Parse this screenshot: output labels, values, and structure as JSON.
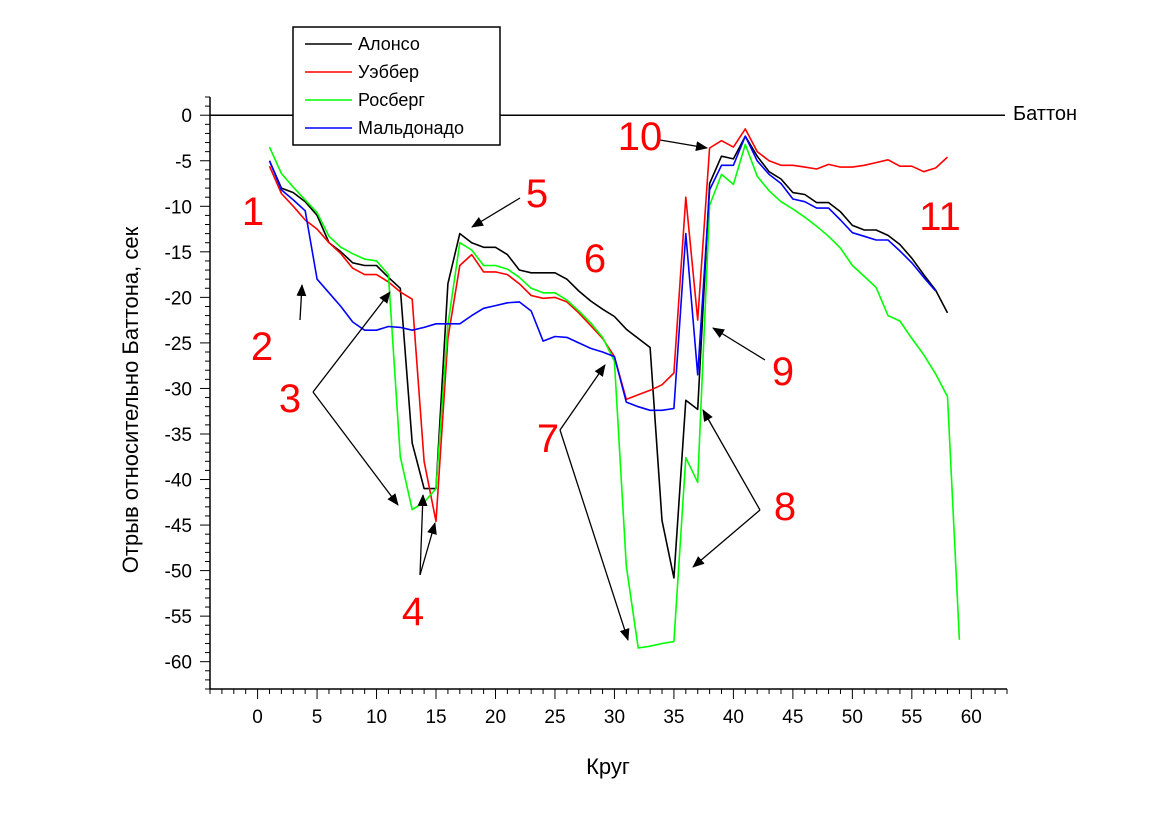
{
  "chart_data": {
    "type": "line",
    "title": "",
    "xlabel": "Круг",
    "ylabel": "Отрыв относительно Баттона, сек",
    "xlim": [
      -4,
      63
    ],
    "ylim": [
      -63,
      2
    ],
    "x_major_ticks": [
      0,
      5,
      10,
      15,
      20,
      25,
      30,
      35,
      40,
      45,
      50,
      55,
      60
    ],
    "x_tick_labels": [
      "0",
      "5",
      "10",
      "15",
      "20",
      "25",
      "30",
      "35",
      "40",
      "45",
      "50",
      "55",
      "60"
    ],
    "y_major_ticks": [
      0,
      -5,
      -10,
      -15,
      -20,
      -25,
      -30,
      -35,
      -40,
      -45,
      -50,
      -55,
      -60
    ],
    "y_tick_labels": [
      "0",
      "-5",
      "-10",
      "-15",
      "-20",
      "-25",
      "-30",
      "-35",
      "-40",
      "-45",
      "-50",
      "-55",
      "-60"
    ],
    "grid": false,
    "legend_position": "top-left",
    "reference_line": {
      "name": "Баттон",
      "y": 0,
      "color": "#000000"
    },
    "series": [
      {
        "name": "Алонсо",
        "color": "#000000",
        "points": [
          [
            1,
            -5
          ],
          [
            2,
            -8
          ],
          [
            3,
            -8.5
          ],
          [
            4,
            -9.5
          ],
          [
            5,
            -11
          ],
          [
            6,
            -14
          ],
          [
            7,
            -15
          ],
          [
            8,
            -16.2
          ],
          [
            9,
            -16.5
          ],
          [
            10,
            -16.5
          ],
          [
            11,
            -17.8
          ],
          [
            12,
            -19
          ],
          [
            13,
            -36
          ],
          [
            14,
            -41
          ],
          [
            15,
            -41
          ],
          [
            16,
            -18.5
          ],
          [
            17,
            -13
          ],
          [
            18,
            -14
          ],
          [
            19,
            -14.5
          ],
          [
            20,
            -14.5
          ],
          [
            21,
            -15.3
          ],
          [
            22,
            -17
          ],
          [
            23,
            -17.3
          ],
          [
            24,
            -17.3
          ],
          [
            25,
            -17.3
          ],
          [
            26,
            -18
          ],
          [
            27,
            -19.3
          ],
          [
            28,
            -20.4
          ],
          [
            29,
            -21.3
          ],
          [
            30,
            -22.1
          ],
          [
            31,
            -23.5
          ],
          [
            32,
            -24.5
          ],
          [
            33,
            -25.5
          ],
          [
            34,
            -44.5
          ],
          [
            35,
            -50.8
          ],
          [
            36,
            -31.3
          ],
          [
            37,
            -32.3
          ],
          [
            38,
            -7.5
          ],
          [
            39,
            -4.5
          ],
          [
            40,
            -4.8
          ],
          [
            41,
            -2.3
          ],
          [
            42,
            -4.5
          ],
          [
            43,
            -6.2
          ],
          [
            44,
            -7
          ],
          [
            45,
            -8.5
          ],
          [
            46,
            -8.7
          ],
          [
            47,
            -9.6
          ],
          [
            48,
            -9.6
          ],
          [
            49,
            -10.6
          ],
          [
            50,
            -12.1
          ],
          [
            51,
            -12.6
          ],
          [
            52,
            -12.6
          ],
          [
            53,
            -13.2
          ],
          [
            54,
            -14.2
          ],
          [
            55,
            -15.7
          ],
          [
            56,
            -17.5
          ],
          [
            57,
            -19.2
          ],
          [
            58,
            -21.7
          ]
        ]
      },
      {
        "name": "Уэббер",
        "color": "#ff0000",
        "points": [
          [
            1,
            -5.6
          ],
          [
            2,
            -8.6
          ],
          [
            3,
            -10
          ],
          [
            4,
            -11.5
          ],
          [
            5,
            -12.5
          ],
          [
            6,
            -14
          ],
          [
            7,
            -15.2
          ],
          [
            8,
            -16.8
          ],
          [
            9,
            -17.5
          ],
          [
            10,
            -17.5
          ],
          [
            11,
            -18.3
          ],
          [
            12,
            -19.4
          ],
          [
            13,
            -20.2
          ],
          [
            14,
            -38
          ],
          [
            15,
            -44.6
          ],
          [
            16,
            -24.5
          ],
          [
            17,
            -16.5
          ],
          [
            18,
            -15.3
          ],
          [
            19,
            -17.2
          ],
          [
            20,
            -17.2
          ],
          [
            21,
            -17.5
          ],
          [
            22,
            -18.5
          ],
          [
            23,
            -19.8
          ],
          [
            24,
            -20.1
          ],
          [
            25,
            -20
          ],
          [
            26,
            -20.5
          ],
          [
            27,
            -21.7
          ],
          [
            28,
            -23.1
          ],
          [
            29,
            -24.5
          ],
          [
            30,
            -26.5
          ],
          [
            31,
            -31.2
          ],
          [
            32,
            -30.7
          ],
          [
            33,
            -30.2
          ],
          [
            34,
            -29.6
          ],
          [
            35,
            -28.3
          ],
          [
            36,
            -9
          ],
          [
            37,
            -22.5
          ],
          [
            38,
            -3.6
          ],
          [
            39,
            -2.8
          ],
          [
            40,
            -3.5
          ],
          [
            41,
            -1.5
          ],
          [
            42,
            -4
          ],
          [
            43,
            -5
          ],
          [
            44,
            -5.5
          ],
          [
            45,
            -5.5
          ],
          [
            46,
            -5.7
          ],
          [
            47,
            -5.9
          ],
          [
            48,
            -5.4
          ],
          [
            49,
            -5.7
          ],
          [
            50,
            -5.7
          ],
          [
            51,
            -5.5
          ],
          [
            52,
            -5.2
          ],
          [
            53,
            -4.9
          ],
          [
            54,
            -5.6
          ],
          [
            55,
            -5.6
          ],
          [
            56,
            -6.2
          ],
          [
            57,
            -5.8
          ],
          [
            58,
            -4.6
          ]
        ]
      },
      {
        "name": "Росберг",
        "color": "#00ff00",
        "points": [
          [
            1,
            -3.5
          ],
          [
            2,
            -6.4
          ],
          [
            3,
            -7.9
          ],
          [
            4,
            -9.3
          ],
          [
            5,
            -10.7
          ],
          [
            6,
            -13.3
          ],
          [
            7,
            -14.5
          ],
          [
            8,
            -15.2
          ],
          [
            9,
            -15.8
          ],
          [
            10,
            -16
          ],
          [
            11,
            -17.5
          ],
          [
            12,
            -37.5
          ],
          [
            13,
            -43.3
          ],
          [
            14,
            -42.5
          ],
          [
            15,
            -41
          ],
          [
            16,
            -23
          ],
          [
            17,
            -14
          ],
          [
            18,
            -14.8
          ],
          [
            19,
            -16.5
          ],
          [
            20,
            -16.5
          ],
          [
            21,
            -16.9
          ],
          [
            22,
            -17.8
          ],
          [
            23,
            -19
          ],
          [
            24,
            -19.5
          ],
          [
            25,
            -19.5
          ],
          [
            26,
            -20.3
          ],
          [
            27,
            -21.5
          ],
          [
            28,
            -22.8
          ],
          [
            29,
            -24.4
          ],
          [
            30,
            -27
          ],
          [
            31,
            -49.5
          ],
          [
            32,
            -58.5
          ],
          [
            33,
            -58.3
          ],
          [
            34,
            -58
          ],
          [
            35,
            -57.8
          ],
          [
            36,
            -37.6
          ],
          [
            37,
            -40.3
          ],
          [
            38,
            -9.9
          ],
          [
            39,
            -6.5
          ],
          [
            40,
            -7.6
          ],
          [
            41,
            -3.2
          ],
          [
            42,
            -6.7
          ],
          [
            43,
            -8.3
          ],
          [
            44,
            -9.5
          ],
          [
            45,
            -10.3
          ],
          [
            46,
            -11.2
          ],
          [
            47,
            -12.2
          ],
          [
            48,
            -13.3
          ],
          [
            49,
            -14.6
          ],
          [
            50,
            -16.5
          ],
          [
            51,
            -17.7
          ],
          [
            52,
            -18.9
          ],
          [
            53,
            -22
          ],
          [
            54,
            -22.6
          ],
          [
            55,
            -24.5
          ],
          [
            56,
            -26.3
          ],
          [
            57,
            -28.4
          ],
          [
            58,
            -30.9
          ],
          [
            59,
            -57.6
          ]
        ]
      },
      {
        "name": "Мальдонадо",
        "color": "#0000ff",
        "points": [
          [
            1,
            -5
          ],
          [
            2,
            -8.2
          ],
          [
            3,
            -9.3
          ],
          [
            4,
            -10.5
          ],
          [
            5,
            -18
          ],
          [
            6,
            -19.5
          ],
          [
            7,
            -21
          ],
          [
            8,
            -22.7
          ],
          [
            9,
            -23.6
          ],
          [
            10,
            -23.6
          ],
          [
            11,
            -23.2
          ],
          [
            12,
            -23.3
          ],
          [
            13,
            -23.6
          ],
          [
            14,
            -23.3
          ],
          [
            15,
            -22.9
          ],
          [
            16,
            -22.9
          ],
          [
            17,
            -22.9
          ],
          [
            18,
            -22
          ],
          [
            19,
            -21.2
          ],
          [
            20,
            -20.9
          ],
          [
            21,
            -20.6
          ],
          [
            22,
            -20.5
          ],
          [
            23,
            -21.5
          ],
          [
            24,
            -24.8
          ],
          [
            25,
            -24.3
          ],
          [
            26,
            -24.4
          ],
          [
            27,
            -25
          ],
          [
            28,
            -25.6
          ],
          [
            29,
            -26
          ],
          [
            30,
            -26.5
          ],
          [
            31,
            -31.5
          ],
          [
            32,
            -32
          ],
          [
            33,
            -32.4
          ],
          [
            34,
            -32.4
          ],
          [
            35,
            -32.2
          ],
          [
            36,
            -13
          ],
          [
            37,
            -28.5
          ],
          [
            38,
            -8.2
          ],
          [
            39,
            -5.5
          ],
          [
            40,
            -5.5
          ],
          [
            41,
            -2.3
          ],
          [
            42,
            -5
          ],
          [
            43,
            -6.5
          ],
          [
            44,
            -7.5
          ],
          [
            45,
            -9.2
          ],
          [
            46,
            -9.5
          ],
          [
            47,
            -10.2
          ],
          [
            48,
            -10.2
          ],
          [
            49,
            -11.5
          ],
          [
            50,
            -12.9
          ],
          [
            51,
            -13.3
          ],
          [
            52,
            -13.7
          ],
          [
            53,
            -13.7
          ],
          [
            54,
            -14.9
          ],
          [
            55,
            -16.2
          ],
          [
            56,
            -17.8
          ],
          [
            57,
            -19.3
          ]
        ]
      }
    ],
    "annotations": [
      {
        "label": "1",
        "color": "#ff0000"
      },
      {
        "label": "2",
        "color": "#ff0000"
      },
      {
        "label": "3",
        "color": "#ff0000"
      },
      {
        "label": "4",
        "color": "#ff0000"
      },
      {
        "label": "5",
        "color": "#ff0000"
      },
      {
        "label": "6",
        "color": "#ff0000"
      },
      {
        "label": "7",
        "color": "#ff0000"
      },
      {
        "label": "8",
        "color": "#ff0000"
      },
      {
        "label": "9",
        "color": "#ff0000"
      },
      {
        "label": "10",
        "color": "#ff0000"
      },
      {
        "label": "11",
        "color": "#ff0000"
      }
    ]
  }
}
